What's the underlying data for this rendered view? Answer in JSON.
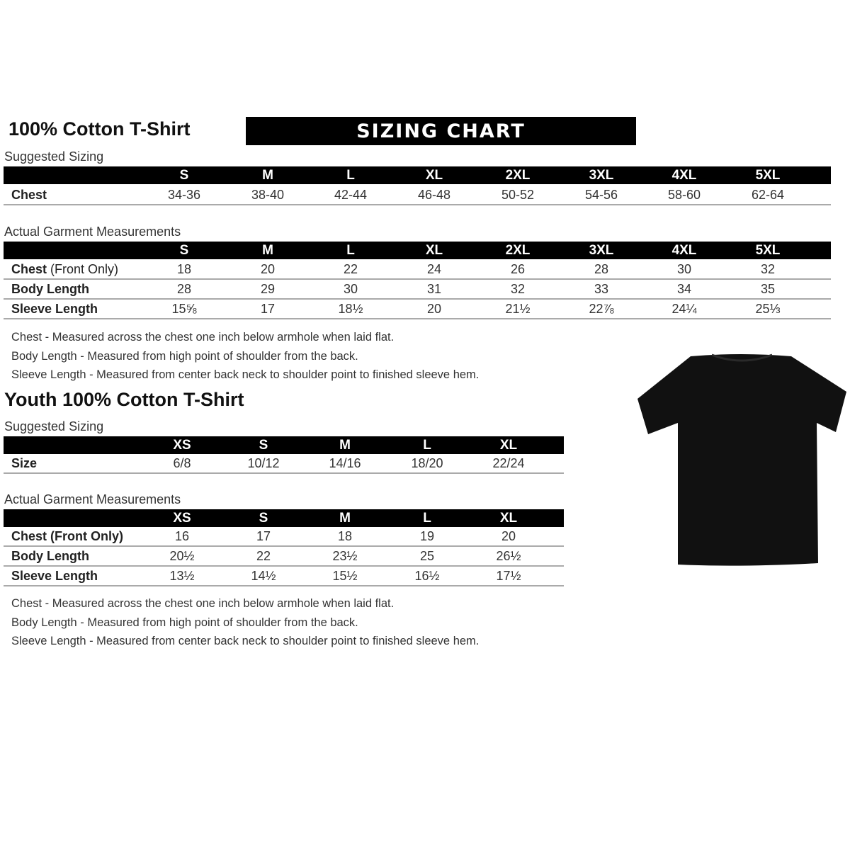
{
  "adult": {
    "title": "100% Cotton T-Shirt",
    "banner": "SIZING CHART",
    "suggested_label": "Suggested Sizing",
    "sizes": [
      "S",
      "M",
      "L",
      "XL",
      "2XL",
      "3XL",
      "4XL",
      "5XL"
    ],
    "suggested_rows": [
      {
        "label": "Chest",
        "label_extra": "",
        "values": [
          "34-36",
          "38-40",
          "42-44",
          "46-48",
          "50-52",
          "54-56",
          "58-60",
          "62-64"
        ]
      }
    ],
    "actual_label": "Actual Garment Measurements",
    "actual_rows": [
      {
        "label": "Chest",
        "label_extra": " (Front Only)",
        "values": [
          "18",
          "20",
          "22",
          "24",
          "26",
          "28",
          "30",
          "32"
        ]
      },
      {
        "label": "Body Length",
        "label_extra": "",
        "values": [
          "28",
          "29",
          "30",
          "31",
          "32",
          "33",
          "34",
          "35"
        ]
      },
      {
        "label": "Sleeve Length",
        "label_extra": "",
        "values": [
          "15⅝",
          "17",
          "18½",
          "20",
          "21½",
          "22⅞",
          "24¼",
          "25⅓"
        ]
      }
    ],
    "notes": [
      "Chest - Measured across the chest one inch below armhole when laid flat.",
      "Body Length - Measured from high point of shoulder from the back.",
      "Sleeve Length - Measured from center back neck to shoulder point to finished sleeve hem."
    ]
  },
  "youth": {
    "title": "Youth 100% Cotton T-Shirt",
    "suggested_label": "Suggested Sizing",
    "sizes": [
      "XS",
      "S",
      "M",
      "L",
      "XL"
    ],
    "suggested_rows": [
      {
        "label": "Size",
        "label_extra": "",
        "values": [
          "6/8",
          "10/12",
          "14/16",
          "18/20",
          "22/24"
        ]
      }
    ],
    "actual_label": "Actual Garment Measurements",
    "actual_rows": [
      {
        "label": "Chest (Front Only)",
        "label_extra": "",
        "values": [
          "16",
          "17",
          "18",
          "19",
          "20"
        ]
      },
      {
        "label": "Body Length",
        "label_extra": "",
        "values": [
          "20½",
          "22",
          "23½",
          "25",
          "26½"
        ]
      },
      {
        "label": "Sleeve Length",
        "label_extra": "",
        "values": [
          "13½",
          "14½",
          "15½",
          "16½",
          "17½"
        ]
      }
    ],
    "notes": [
      "Chest - Measured across the chest one inch below armhole when laid flat.",
      "Body Length - Measured from high point of shoulder from the back.",
      "Sleeve Length - Measured from center back neck to shoulder point to finished sleeve hem."
    ]
  },
  "image": {
    "garment_color": "#111111",
    "icon": "t-shirt-icon"
  }
}
